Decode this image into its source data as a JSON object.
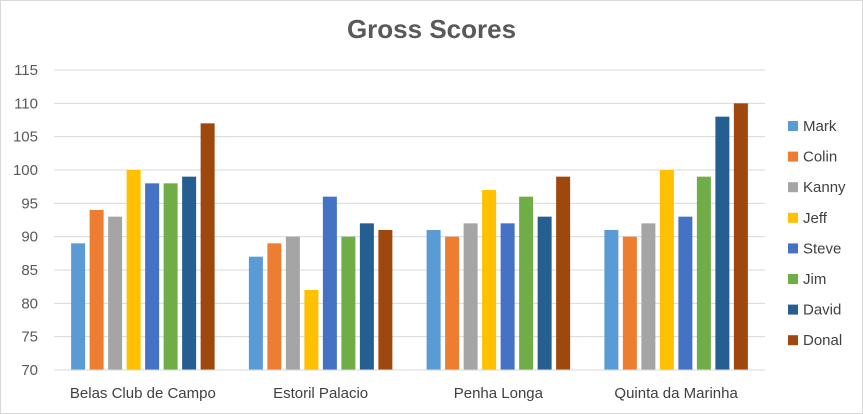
{
  "chart_data": {
    "type": "bar",
    "title": "Gross Scores",
    "xlabel": "",
    "ylabel": "",
    "ylim": [
      70,
      115
    ],
    "yticks": [
      70,
      75,
      80,
      85,
      90,
      95,
      100,
      105,
      110,
      115
    ],
    "grid": true,
    "legend_position": "right",
    "categories": [
      "Belas Club de Campo",
      "Estoril Palacio",
      "Penha Longa",
      "Quinta da Marinha"
    ],
    "series": [
      {
        "name": "Mark",
        "color": "#5b9bd5",
        "values": [
          89,
          87,
          91,
          91
        ]
      },
      {
        "name": "Colin",
        "color": "#ed7d31",
        "values": [
          94,
          89,
          90,
          90
        ]
      },
      {
        "name": "Kanny",
        "color": "#a5a5a5",
        "values": [
          93,
          90,
          92,
          92
        ]
      },
      {
        "name": "Jeff",
        "color": "#ffc000",
        "values": [
          100,
          82,
          97,
          100
        ]
      },
      {
        "name": "Steve",
        "color": "#4472c4",
        "values": [
          98,
          96,
          92,
          93
        ]
      },
      {
        "name": "Jim",
        "color": "#70ad47",
        "values": [
          98,
          90,
          96,
          99
        ]
      },
      {
        "name": "David",
        "color": "#255e91",
        "values": [
          99,
          92,
          93,
          108
        ]
      },
      {
        "name": "Donal",
        "color": "#9e480e",
        "values": [
          107,
          91,
          99,
          110
        ]
      }
    ]
  }
}
